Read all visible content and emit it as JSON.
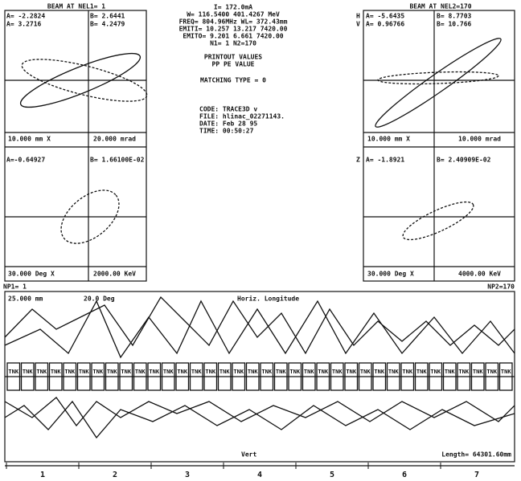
{
  "left_panel": {
    "title": "BEAM AT NEL1= 1",
    "a1": "A= -2.2824",
    "b1": "B= 2.6441",
    "a2": "A= 3.2716",
    "b2": "B= 4.2479",
    "scale_x": "10.000 mm  X",
    "scale_xp": "20.000 mrad",
    "a3": "A=-0.64927",
    "b3": "B= 1.66100E-02",
    "scale_z": "30.000 Deg  X",
    "scale_e": "2000.00 KeV"
  },
  "right_panel": {
    "title": "BEAM AT NEL2=170",
    "h": "H",
    "v": "V",
    "z": "Z",
    "a1": "A= -5.6435",
    "b1": "B= 8.7703",
    "a2": "A= 0.96766",
    "b2": "B= 10.766",
    "scale_x": "10.000 mm  X",
    "scale_xp": "10.000 mrad",
    "a3": "A= -1.8921",
    "b3": "B= 2.40909E-02",
    "scale_z": "30.000 Deg  X",
    "scale_e": "4000.00 KeV"
  },
  "info": {
    "current": "I=   172.0mA",
    "energy": "W= 116.5400  401.4267 MeV",
    "freq": "FREQ= 804.96MHz   WL= 372.43mm",
    "emiti": "EMITI=  10.257   13.217   7420.00",
    "emito": "EMITO=   9.201    6.661   7420.00",
    "n": "N1=  1   N2=170",
    "printout": "PRINTOUT VALUES",
    "columns": "PP PE       VALUE",
    "matching": "MATCHING TYPE =  0",
    "code": "CODE:  TRACE3D v",
    "file": "FILE:  hlinac_02271143.",
    "date": "DATE:  Feb 28 95",
    "time": "TIME:  00:50:27"
  },
  "beamline": {
    "np1": "NP1=  1",
    "np2": "NP2=170",
    "scale_mm": "25.000 mm",
    "scale_deg": "20.0 Deg",
    "label_top": "Horiz. Longitude",
    "label_bottom": "Vert",
    "length": "Length= 64301.60mm",
    "elements": [
      "TNK",
      "TNK",
      "TNK",
      "TNK",
      "TNK",
      "TNK",
      "TNK",
      "TNK",
      "TNK",
      "TNK",
      "TNK",
      "TNK",
      "TNK",
      "TNK",
      "TNK",
      "TNK",
      "TNK",
      "TNK",
      "TNK",
      "TNK",
      "TNK",
      "TNK",
      "TNK",
      "TNK",
      "TNK",
      "TNK",
      "TNK",
      "TNK",
      "TNK",
      "TNK",
      "TNK",
      "TNK",
      "TNK",
      "TNK",
      "TNK",
      "TNK"
    ],
    "sections": [
      "1",
      "2",
      "3",
      "4",
      "5",
      "6",
      "7"
    ]
  }
}
